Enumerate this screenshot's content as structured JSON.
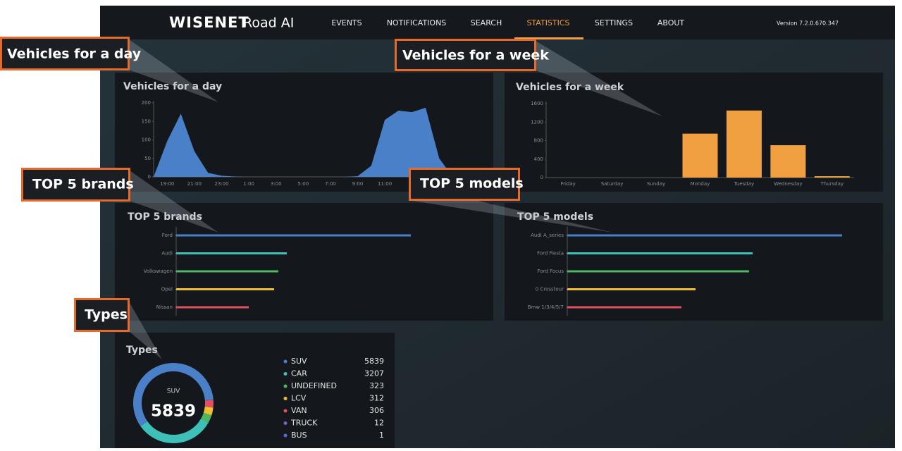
{
  "header": {
    "logo": "WISENET",
    "product": "Road AI",
    "nav": [
      "EVENTS",
      "NOTIFICATIONS",
      "SEARCH",
      "STATISTICS",
      "SETTINGS",
      "ABOUT"
    ],
    "version": "Version 7.2.0.670.347"
  },
  "callouts": [
    "Vehicles for a day",
    "Vehicles for a week",
    "TOP 5 brands",
    "TOP 5 models",
    "Types"
  ],
  "chart_data": [
    {
      "type": "area",
      "title": "Vehicles for a day",
      "color": "#4a80c8",
      "categories": [
        null,
        "19:00",
        null,
        "21:00",
        null,
        "23:00",
        null,
        "1:00",
        null,
        "3:00",
        null,
        "5:00",
        null,
        "7:00",
        null,
        "9:00",
        null,
        "11:00",
        null,
        null,
        null,
        null,
        null
      ],
      "values": [
        0,
        97,
        171,
        69,
        11,
        3,
        1,
        0,
        0,
        0,
        0,
        0,
        0,
        0,
        0,
        2,
        30,
        154,
        179,
        175,
        187,
        50,
        0
      ],
      "ylim": [
        0,
        200
      ],
      "yticks": [
        0,
        50,
        100,
        150,
        200
      ]
    },
    {
      "type": "bar",
      "title": "Vehicles for a week",
      "color": "#f0a040",
      "categories": [
        "Friday",
        "Saturday",
        "Sunday",
        "Monday",
        "Tuesday",
        "Wednesday",
        "Thursday"
      ],
      "values": [
        0,
        0,
        0,
        950,
        1450,
        700,
        30
      ],
      "ylim": [
        0,
        1600
      ],
      "yticks": [
        0,
        400,
        800,
        1200,
        1600
      ]
    },
    {
      "type": "hbar",
      "title": "TOP 5 brands",
      "categories": [
        "Ford",
        "Audi",
        "Volkswagen",
        "Opel",
        "Nissan"
      ],
      "values": [
        333,
        157,
        145,
        139,
        103
      ],
      "colors": [
        "#4a80c8",
        "#3cc0b8",
        "#4cb860",
        "#f0c030",
        "#e05060"
      ],
      "xlim": [
        0,
        400
      ]
    },
    {
      "type": "hbar",
      "title": "TOP 5 models",
      "categories": [
        "Audi A_series",
        "Ford Fiesta",
        "Ford Focus",
        "0 Crosstour",
        "Bmw 1/3/4/5/7"
      ],
      "values": [
        390,
        263,
        258,
        182,
        162
      ],
      "colors": [
        "#4a80c8",
        "#3cc0b8",
        "#4cb860",
        "#f0c030",
        "#e05060"
      ],
      "xlim": [
        0,
        400
      ]
    },
    {
      "type": "donut",
      "title": "Types",
      "categories": [
        "SUV",
        "CAR",
        "UNDEFINED",
        "LCV",
        "VAN",
        "TRUCK",
        "BUS"
      ],
      "values": [
        5839,
        3207,
        323,
        312,
        306,
        12,
        1
      ],
      "colors": [
        "#4a80c8",
        "#3cc0b8",
        "#4cb860",
        "#f0c030",
        "#e05060",
        "#8060c0",
        "#5070d0"
      ]
    }
  ]
}
